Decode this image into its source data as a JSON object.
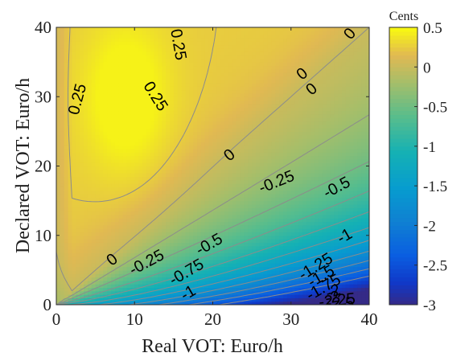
{
  "chart_data": {
    "type": "heatmap",
    "subtype": "filled-contour",
    "title": "",
    "xlabel": "Real VOT: Euro/h",
    "ylabel": "Declared VOT: Euro/h",
    "xlim": [
      0,
      40
    ],
    "ylim": [
      0,
      40
    ],
    "x_ticks": [
      "0",
      "10",
      "20",
      "30",
      "40"
    ],
    "y_ticks": [
      "0",
      "10",
      "20",
      "30",
      "40"
    ],
    "colorbar": {
      "label": "Cents",
      "range": [
        -3,
        0.5
      ],
      "ticks": [
        "0.5",
        "0",
        "-0.5",
        "-1",
        "-1.5",
        "-2",
        "-2.5",
        "-3"
      ],
      "colormap": "parula"
    },
    "contour_levels": [
      0.25,
      0,
      -0.25,
      -0.5,
      -0.75,
      -1,
      -1.25,
      -1.5,
      -1.75,
      -2,
      -2.25,
      -2.5
    ],
    "contour_labels": [
      {
        "text": "0.25",
        "x": 15.5,
        "y": 37.5,
        "angle": -80
      },
      {
        "text": "0.25",
        "x": 2.8,
        "y": 29.6,
        "angle": 75
      },
      {
        "text": "0.25",
        "x": 12.6,
        "y": 30.0,
        "angle": -58
      },
      {
        "text": "0",
        "x": 7.2,
        "y": 6.4,
        "angle": 38
      },
      {
        "text": "0",
        "x": 22.2,
        "y": 21.5,
        "angle": 40
      },
      {
        "text": "0",
        "x": 31.5,
        "y": 33.2,
        "angle": 40
      },
      {
        "text": "0",
        "x": 32.7,
        "y": 31.0,
        "angle": 40
      },
      {
        "text": "0",
        "x": 37.6,
        "y": 39.0,
        "angle": 50
      },
      {
        "text": "-0.25",
        "x": 11.6,
        "y": 6.0,
        "angle": 28
      },
      {
        "text": "-0.25",
        "x": 28.2,
        "y": 17.6,
        "angle": 22
      },
      {
        "text": "-0.5",
        "x": 19.6,
        "y": 8.6,
        "angle": 30
      },
      {
        "text": "-0.5",
        "x": 35.9,
        "y": 16.8,
        "angle": 28
      },
      {
        "text": "-0.75",
        "x": 16.7,
        "y": 4.6,
        "angle": 30
      },
      {
        "text": "-1",
        "x": 16.9,
        "y": 1.6,
        "angle": 30
      },
      {
        "text": "-1",
        "x": 36.9,
        "y": 9.8,
        "angle": 30
      },
      {
        "text": "-1.25",
        "x": 33.2,
        "y": 5.4,
        "angle": 32
      },
      {
        "text": "-1.5",
        "x": 33.9,
        "y": 4.0,
        "angle": 30
      },
      {
        "text": "-1.75",
        "x": 34.2,
        "y": 2.4,
        "angle": 30
      },
      {
        "text": "-2",
        "x": 35.4,
        "y": 1.8,
        "angle": 20
      },
      {
        "text": "-2",
        "x": 35.3,
        "y": 0.9,
        "angle": 10
      },
      {
        "text": "-2.25",
        "x": 35.9,
        "y": 0.5,
        "angle": 6
      },
      {
        "text": "-2.5",
        "x": 36.3,
        "y": 0.1,
        "angle": 0
      }
    ],
    "grid": false,
    "legend": "colorbar-right"
  }
}
